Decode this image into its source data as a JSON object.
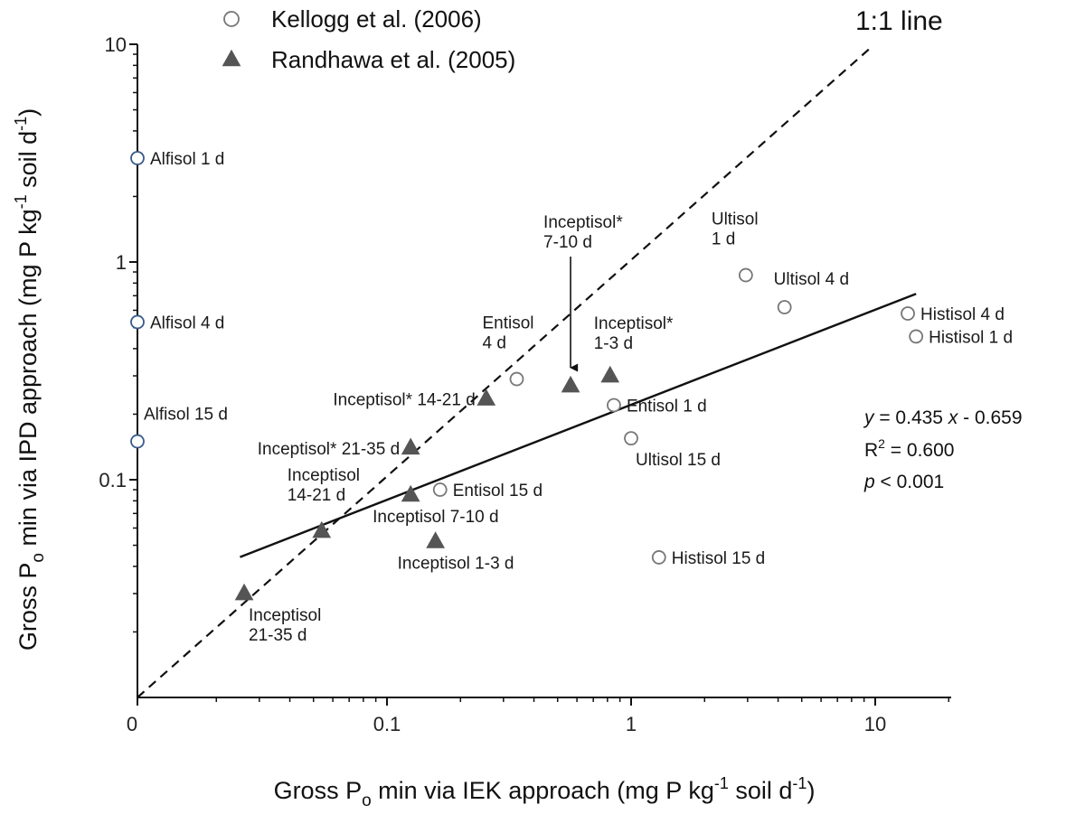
{
  "chart_data": {
    "type": "scatter",
    "x_axis": {
      "label_main": "Gross P",
      "label_sub": "o",
      "label_mid": " min via IEK approach (mg P kg",
      "label_sup1": "-1",
      "label_mid2": " soil d",
      "label_sup2": "-1",
      "label_end": ")",
      "scale": "log",
      "ticks": [
        {
          "value": 0,
          "label": "0"
        },
        {
          "value": 0.1,
          "label": "0.1"
        },
        {
          "value": 1,
          "label": "1"
        },
        {
          "value": 10,
          "label": "10"
        }
      ]
    },
    "y_axis": {
      "label_main": "Gross P",
      "label_sub": "o",
      "label_mid": " min via IPD approach (mg P kg",
      "label_sup1": "-1",
      "label_mid2": " soil d",
      "label_sup2": "-1",
      "label_end": ")",
      "scale": "log",
      "ticks": [
        {
          "value": 0.1,
          "label": "0.1"
        },
        {
          "value": 1,
          "label": "1"
        },
        {
          "value": 10,
          "label": "10"
        }
      ]
    },
    "legend": {
      "placement": "top-left",
      "entries": [
        {
          "name": "Kellogg et al. (2006)",
          "marker": "open-circle"
        },
        {
          "name": "Randhawa et al. (2005)",
          "marker": "filled-triangle"
        }
      ]
    },
    "one_to_one_label": "1:1 line",
    "regression": {
      "eq_y": "y",
      "eq_mid": " =  0.435 ",
      "eq_x": "x",
      "eq_end": " - 0.659",
      "r2_main": "R",
      "r2_sup": "2",
      "r2_end": " = 0.600",
      "p_main": "p",
      "p_end": " < 0.001",
      "x_range": [
        0.025,
        14.7
      ]
    },
    "series": [
      {
        "name": "Kellogg et al. (2006)",
        "marker": "open-circle",
        "points": [
          {
            "x": 0.01,
            "y": 3.0,
            "label": [
              "Alfisol 1 d"
            ],
            "anchor": "right",
            "zero_x": true
          },
          {
            "x": 0.01,
            "y": 0.53,
            "label": [
              "Alfisol 4 d"
            ],
            "anchor": "right",
            "zero_x": true
          },
          {
            "x": 0.01,
            "y": 0.15,
            "label": [
              "Alfisol 15 d"
            ],
            "anchor": "above",
            "zero_x": true
          },
          {
            "x": 0.34,
            "y": 0.29,
            "label": [
              "Entisol",
              "4 d"
            ],
            "anchor": "upper-left"
          },
          {
            "x": 0.85,
            "y": 0.22,
            "label": [
              "Entisol 1 d"
            ],
            "anchor": "right"
          },
          {
            "x": 0.165,
            "y": 0.09,
            "label": [
              "Entisol 15 d"
            ],
            "anchor": "right"
          },
          {
            "x": 2.95,
            "y": 0.87,
            "label": [
              "Ultisol",
              "1 d"
            ],
            "anchor": "upper-left"
          },
          {
            "x": 4.25,
            "y": 0.62,
            "label": [
              "Ultisol 4 d"
            ],
            "anchor": "upper-right"
          },
          {
            "x": 1.0,
            "y": 0.155,
            "label": [
              "Ultisol 15 d"
            ],
            "anchor": "lower-right"
          },
          {
            "x": 13.6,
            "y": 0.58,
            "label": [
              "Histisol 4 d"
            ],
            "anchor": "right"
          },
          {
            "x": 14.7,
            "y": 0.455,
            "label": [
              "Histisol 1 d"
            ],
            "anchor": "right"
          },
          {
            "x": 1.3,
            "y": 0.044,
            "label": [
              "Histisol 15 d"
            ],
            "anchor": "right"
          }
        ]
      },
      {
        "name": "Randhawa et al. (2005)",
        "marker": "filled-triangle",
        "points": [
          {
            "x": 0.026,
            "y": 0.03,
            "label": [
              "Inceptisol",
              "21-35 d"
            ],
            "anchor": "below"
          },
          {
            "x": 0.054,
            "y": 0.058,
            "label": [
              "Inceptisol",
              "14-21 d"
            ],
            "anchor": "upper-left"
          },
          {
            "x": 0.125,
            "y": 0.085,
            "label": [
              "Inceptisol 7-10 d"
            ],
            "anchor": "below"
          },
          {
            "x": 0.158,
            "y": 0.052,
            "label": [
              "Inceptisol 1-3 d"
            ],
            "anchor": "below"
          },
          {
            "x": 0.125,
            "y": 0.14,
            "label": [
              "Inceptisol* 21-35 d"
            ],
            "anchor": "left"
          },
          {
            "x": 0.255,
            "y": 0.235,
            "label": [
              "Inceptisol* 14-21 d"
            ],
            "anchor": "left"
          },
          {
            "x": 0.565,
            "y": 0.27,
            "label": [
              "Inceptisol*",
              "7-10 d"
            ],
            "anchor": "arrow-above"
          },
          {
            "x": 0.82,
            "y": 0.3,
            "label": [
              "Inceptisol*",
              "1-3 d"
            ],
            "anchor": "above"
          }
        ]
      }
    ]
  }
}
